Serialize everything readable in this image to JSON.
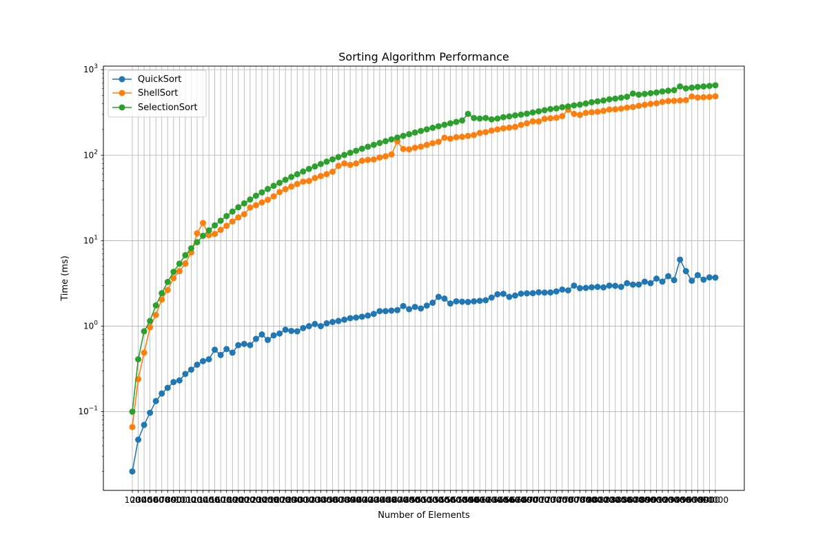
{
  "chart_data": {
    "type": "line",
    "title": "Sorting Algorithm Performance",
    "xlabel": "Number of Elements",
    "ylabel": "Time (ms)",
    "yscale": "log",
    "ylim": [
      0.012,
      1100
    ],
    "grid": true,
    "legend_position": "top-left",
    "x": [
      100,
      200,
      300,
      400,
      500,
      600,
      700,
      800,
      900,
      1000,
      1100,
      1200,
      1300,
      1400,
      1500,
      1600,
      1700,
      1800,
      1900,
      2000,
      2100,
      2200,
      2300,
      2400,
      2500,
      2600,
      2700,
      2800,
      2900,
      3000,
      3100,
      3200,
      3300,
      3400,
      3500,
      3600,
      3700,
      3800,
      3900,
      4000,
      4100,
      4200,
      4300,
      4400,
      4500,
      4600,
      4700,
      4800,
      4900,
      5000,
      5100,
      5200,
      5300,
      5400,
      5500,
      5600,
      5700,
      5800,
      5900,
      6000,
      6100,
      6200,
      6300,
      6400,
      6500,
      6600,
      6700,
      6800,
      6900,
      7000,
      7100,
      7200,
      7300,
      7400,
      7500,
      7600,
      7700,
      7800,
      7900,
      8000,
      8100,
      8200,
      8300,
      8400,
      8500,
      8600,
      8700,
      8800,
      8900,
      9000,
      9100,
      9200,
      9300,
      9400,
      9500,
      9600,
      9700,
      9800,
      9900,
      10000
    ],
    "series": [
      {
        "name": "QuickSort",
        "color": "#1f77b4",
        "values": [
          0.02,
          0.047,
          0.07,
          0.097,
          0.133,
          0.163,
          0.19,
          0.222,
          0.232,
          0.276,
          0.31,
          0.354,
          0.39,
          0.41,
          0.53,
          0.46,
          0.54,
          0.49,
          0.6,
          0.62,
          0.6,
          0.71,
          0.8,
          0.69,
          0.78,
          0.82,
          0.91,
          0.88,
          0.87,
          0.95,
          1.0,
          1.06,
          1.0,
          1.08,
          1.12,
          1.15,
          1.19,
          1.24,
          1.26,
          1.29,
          1.33,
          1.39,
          1.5,
          1.5,
          1.52,
          1.54,
          1.72,
          1.58,
          1.68,
          1.61,
          1.74,
          1.88,
          2.2,
          2.1,
          1.84,
          1.95,
          1.93,
          1.92,
          1.95,
          1.98,
          2.01,
          2.16,
          2.36,
          2.39,
          2.2,
          2.28,
          2.4,
          2.42,
          2.43,
          2.49,
          2.47,
          2.48,
          2.55,
          2.68,
          2.62,
          2.98,
          2.78,
          2.8,
          2.85,
          2.88,
          2.84,
          2.98,
          2.96,
          2.88,
          3.18,
          3.06,
          3.07,
          3.31,
          3.18,
          3.6,
          3.32,
          3.84,
          3.46,
          6.0,
          4.4,
          3.4,
          3.95,
          3.5,
          3.72,
          3.7
        ]
      },
      {
        "name": "ShellSort",
        "color": "#ff7f0e",
        "values": [
          0.066,
          0.24,
          0.49,
          0.97,
          1.35,
          2.05,
          2.65,
          3.65,
          4.4,
          5.4,
          7.3,
          12.2,
          16.1,
          11.6,
          12.0,
          13.4,
          14.9,
          16.8,
          18.7,
          20.4,
          24.4,
          26.0,
          28.0,
          30.0,
          33.0,
          37.0,
          40.0,
          43.0,
          46.0,
          49.0,
          50.0,
          54.0,
          57.0,
          60.0,
          64.0,
          75.0,
          80.0,
          77.0,
          80.0,
          86.0,
          88.0,
          89.0,
          94.0,
          97.0,
          102.0,
          145.0,
          118.0,
          117.0,
          122.0,
          126.0,
          132.0,
          138.0,
          143.0,
          160.0,
          156.0,
          162.0,
          164.0,
          168.0,
          172.0,
          182.0,
          186.0,
          194.0,
          200.0,
          206.0,
          210.0,
          214.0,
          226.0,
          236.0,
          248.0,
          248.0,
          266.0,
          270.0,
          274.0,
          286.0,
          340.0,
          304.0,
          296.0,
          312.0,
          318.0,
          322.0,
          330.0,
          342.0,
          344.0,
          350.0,
          360.0,
          366.0,
          378.0,
          388.0,
          398.0,
          404.0,
          420.0,
          430.0,
          432.0,
          436.0,
          440.0,
          485.0,
          472.0,
          476.0,
          480.0,
          488.0
        ]
      },
      {
        "name": "SelectionSort",
        "color": "#2ca02c",
        "values": [
          0.1,
          0.41,
          0.87,
          1.15,
          1.75,
          2.43,
          3.29,
          4.32,
          5.38,
          6.76,
          8.14,
          9.6,
          11.4,
          13.2,
          15.1,
          17.1,
          19.4,
          21.9,
          24.6,
          27.3,
          30.3,
          33.5,
          36.7,
          40.2,
          43.8,
          47.5,
          51.5,
          55.6,
          59.9,
          64.4,
          69.0,
          73.8,
          78.8,
          84.0,
          89.4,
          95.0,
          100.7,
          106.6,
          112.7,
          119.0,
          125.5,
          132.1,
          138.9,
          145.9,
          153.1,
          160.6,
          168.2,
          176.0,
          183.9,
          192.1,
          200.5,
          209.0,
          217.7,
          226.6,
          235.7,
          245.0,
          254.6,
          304.0,
          272.0,
          268.0,
          272.0,
          262.0,
          268.0,
          278.0,
          284.0,
          292.0,
          298.0,
          306.0,
          316.0,
          326.0,
          336.0,
          346.0,
          352.0,
          364.0,
          372.0,
          382.0,
          390.0,
          402.0,
          416.0,
          426.0,
          436.0,
          450.0,
          458.0,
          470.0,
          482.0,
          526.0,
          510.0,
          520.0,
          530.0,
          540.0,
          556.0,
          568.0,
          576.0,
          636.0,
          604.0,
          616.0,
          628.0,
          636.0,
          646.0,
          656.0
        ]
      }
    ]
  }
}
